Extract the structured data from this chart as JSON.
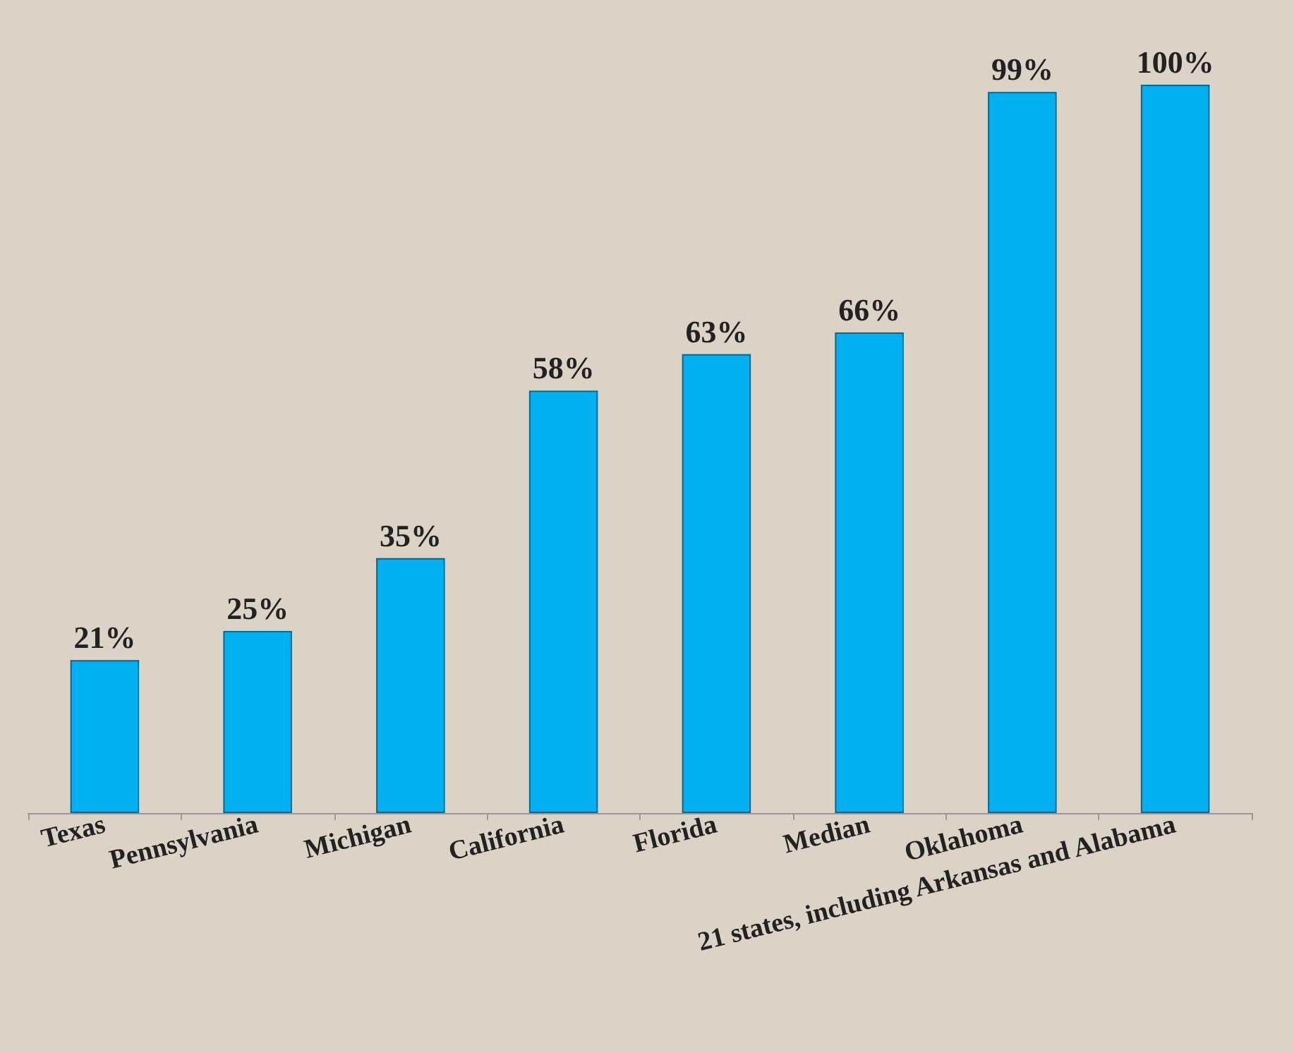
{
  "chart_data": {
    "type": "bar",
    "categories": [
      "Texas",
      "Pennsylvania",
      "Michigan",
      "California",
      "Florida",
      "Median",
      "Oklahoma",
      "21 states, including Arkansas and Alabama"
    ],
    "values": [
      21,
      25,
      35,
      58,
      63,
      66,
      99,
      100
    ],
    "value_labels": [
      "21%",
      "25%",
      "35%",
      "58%",
      "63%",
      "66%",
      "99%",
      "100%"
    ],
    "color": "#00b0f0"
  }
}
